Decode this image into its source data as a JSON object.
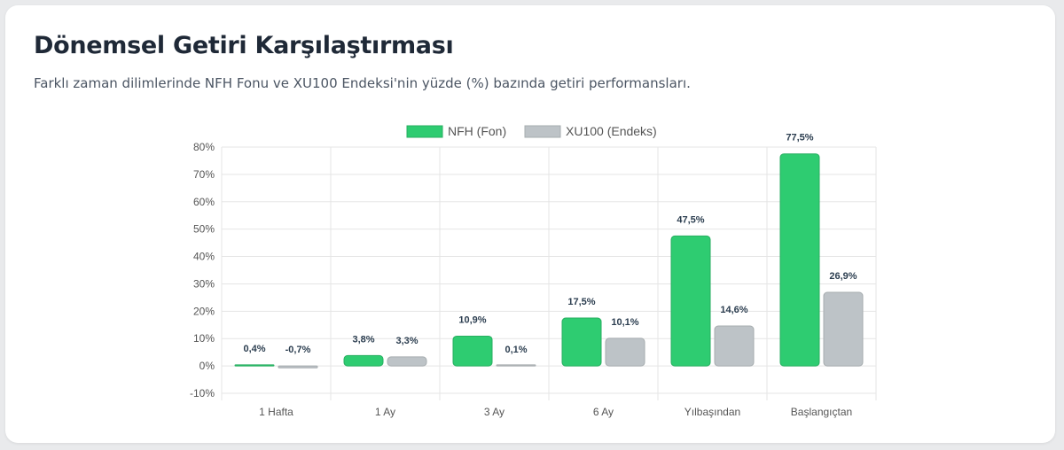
{
  "header": {
    "title": "Dönemsel Getiri Karşılaştırması",
    "subtitle": "Farklı zaman dilimlerinde NFH Fonu ve XU100 Endeksi'nin yüzde (%) bazında getiri performansları."
  },
  "chart_data": {
    "type": "bar",
    "title": "",
    "xlabel": "",
    "ylabel": "",
    "categories": [
      "1 Hafta",
      "1 Ay",
      "3 Ay",
      "6 Ay",
      "Yılbaşından",
      "Başlangıçtan"
    ],
    "series": [
      {
        "name": "NFH (Fon)",
        "color": "#2ecc71",
        "border": "#27ae60",
        "values": [
          0.4,
          3.8,
          10.9,
          17.5,
          47.5,
          77.5
        ],
        "labels": [
          "0,4%",
          "3,8%",
          "10,9%",
          "17,5%",
          "47,5%",
          "77,5%"
        ]
      },
      {
        "name": "XU100 (Endeks)",
        "color": "#bdc3c7",
        "border": "#a6acaf",
        "values": [
          -0.7,
          3.3,
          0.1,
          10.1,
          14.6,
          26.9
        ],
        "labels": [
          "-0,7%",
          "3,3%",
          "0,1%",
          "10,1%",
          "14,6%",
          "26,9%"
        ]
      }
    ],
    "ylim": [
      -10,
      80
    ],
    "yticks": [
      80,
      70,
      60,
      50,
      40,
      30,
      20,
      10,
      0,
      -10
    ],
    "ytick_labels": [
      "80%",
      "70%",
      "60%",
      "50%",
      "40%",
      "30%",
      "20%",
      "10%",
      "0%",
      "-10%"
    ],
    "legend_position": "top",
    "grid": true
  }
}
